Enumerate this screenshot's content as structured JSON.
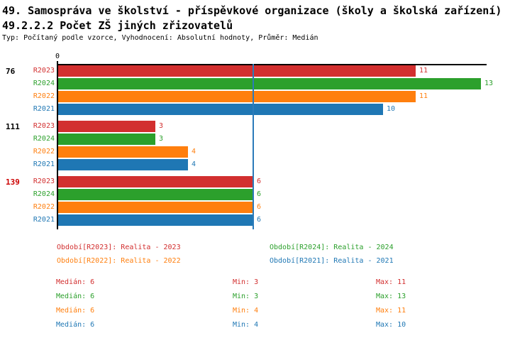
{
  "header": {
    "title": "49. Samospráva ve školství - příspěvkové organizace (školy a školská zařízení)",
    "subtitle": "49.2.2.2 Počet ZŠ jiných zřizovatelů",
    "meta": "Typ: Počítaný podle vzorce, Vyhodnocení: Absolutní hodnoty, Průměr: Medián"
  },
  "colors": {
    "R2023": "#d22f2f",
    "R2024": "#2ca02c",
    "R2022": "#ff7f0e",
    "R2021": "#1f77b4",
    "axis": "#000000",
    "median_line": "#2b7bba",
    "group_label": "#000000",
    "group_label_highlight": "#cc0000"
  },
  "chart_data": {
    "type": "bar",
    "orientation": "horizontal",
    "title": "49.2.2.2 Počet ZŠ jiných zřizovatelů",
    "x_axis": {
      "position": "top",
      "tick_labels": [
        "0"
      ],
      "xlim": [
        0,
        13.2
      ]
    },
    "grid": false,
    "series_order": [
      "R2023",
      "R2024",
      "R2022",
      "R2021"
    ],
    "groups": [
      {
        "label": "76",
        "highlighted": false,
        "values": [
          11,
          13,
          11,
          10
        ]
      },
      {
        "label": "111",
        "highlighted": false,
        "values": [
          3,
          3,
          4,
          4
        ]
      },
      {
        "label": "139",
        "highlighted": true,
        "values": [
          6,
          6,
          6,
          6
        ]
      }
    ],
    "median_reference_line": 6
  },
  "legend": {
    "items": [
      {
        "series": "R2023",
        "text": "Období[R2023]: Realita - 2023"
      },
      {
        "series": "R2024",
        "text": "Období[R2024]: Realita - 2024"
      },
      {
        "series": "R2022",
        "text": "Období[R2022]: Realita - 2022"
      },
      {
        "series": "R2021",
        "text": "Období[R2021]: Realita - 2021"
      }
    ]
  },
  "stats": {
    "labels": {
      "median": "Medián",
      "min": "Min",
      "max": "Max"
    },
    "rows": [
      {
        "series": "R2023",
        "median": 6,
        "min": 3,
        "max": 11
      },
      {
        "series": "R2024",
        "median": 6,
        "min": 3,
        "max": 13
      },
      {
        "series": "R2022",
        "median": 6,
        "min": 4,
        "max": 11
      },
      {
        "series": "R2021",
        "median": 6,
        "min": 4,
        "max": 10
      }
    ]
  }
}
